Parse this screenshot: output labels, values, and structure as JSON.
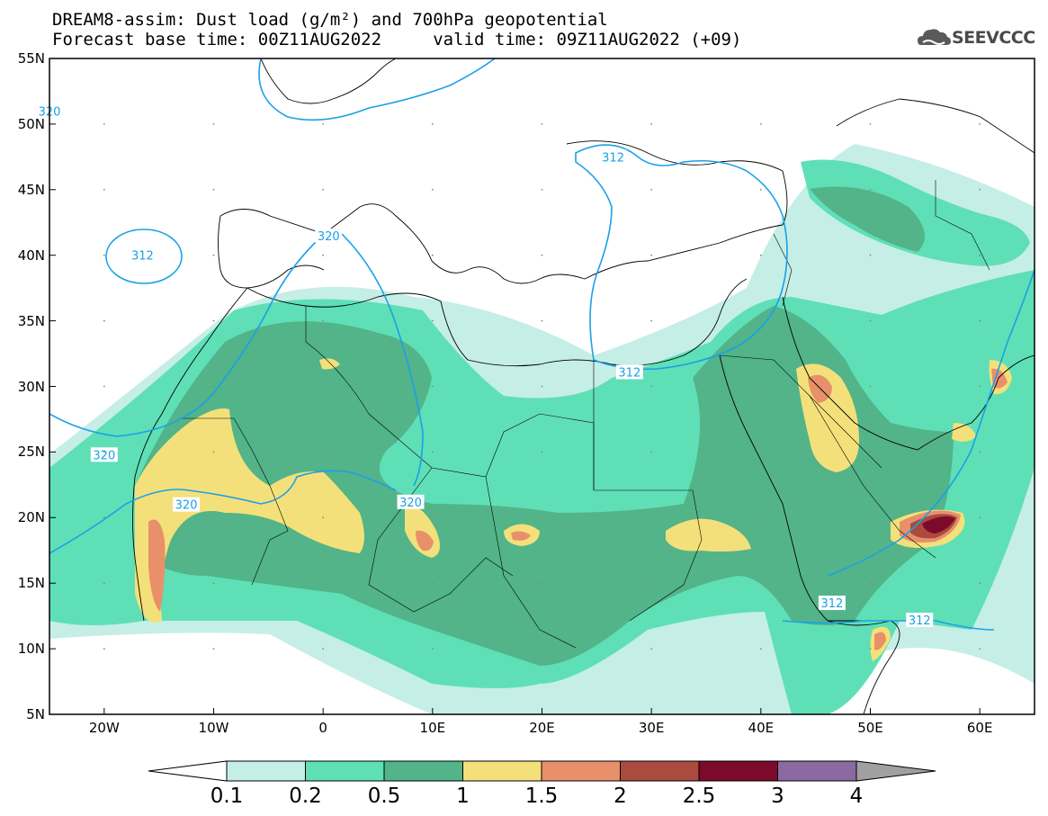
{
  "title_line1": "DREAM8-assim: Dust load (g/m²) and 700hPa geopotential",
  "title_line2": "Forecast base time: 00Z11AUG2022     valid time: 09Z11AUG2022 (+09)",
  "logo": {
    "text": "SEEVCCC",
    "icon": "cloud-icon"
  },
  "map": {
    "lon_range": [
      -25,
      65
    ],
    "lat_range": [
      5,
      55
    ],
    "lat_ticks": [
      {
        "value": 55,
        "label": "55N"
      },
      {
        "value": 50,
        "label": "50N"
      },
      {
        "value": 45,
        "label": "45N"
      },
      {
        "value": 40,
        "label": "40N"
      },
      {
        "value": 35,
        "label": "35N"
      },
      {
        "value": 30,
        "label": "30N"
      },
      {
        "value": 25,
        "label": "25N"
      },
      {
        "value": 20,
        "label": "20N"
      },
      {
        "value": 15,
        "label": "15N"
      },
      {
        "value": 10,
        "label": "10N"
      },
      {
        "value": 5,
        "label": "5N"
      }
    ],
    "lon_ticks": [
      {
        "value": -20,
        "label": "20W"
      },
      {
        "value": -10,
        "label": "10W"
      },
      {
        "value": 0,
        "label": "0"
      },
      {
        "value": 10,
        "label": "10E"
      },
      {
        "value": 20,
        "label": "20E"
      },
      {
        "value": 30,
        "label": "30E"
      },
      {
        "value": 40,
        "label": "40E"
      },
      {
        "value": 50,
        "label": "50E"
      },
      {
        "value": 60,
        "label": "60E"
      }
    ],
    "contour_labels": [
      {
        "text": "320",
        "lon": -25.0,
        "lat": 51.0
      },
      {
        "text": "312",
        "lon": 26.5,
        "lat": 47.5
      },
      {
        "text": "312",
        "lon": -16.5,
        "lat": 40.0
      },
      {
        "text": "320",
        "lon": 0.5,
        "lat": 41.5
      },
      {
        "text": "312",
        "lon": 28.0,
        "lat": 31.1
      },
      {
        "text": "320",
        "lon": -20.0,
        "lat": 24.8
      },
      {
        "text": "320",
        "lon": -12.5,
        "lat": 21.0
      },
      {
        "text": "320",
        "lon": 8.0,
        "lat": 21.2
      },
      {
        "text": "312",
        "lon": 46.5,
        "lat": 13.5
      },
      {
        "text": "312",
        "lon": 54.5,
        "lat": 12.2
      }
    ]
  },
  "colorbar": {
    "levels": [
      "0.1",
      "0.2",
      "0.5",
      "1",
      "1.5",
      "2",
      "2.5",
      "3",
      "4"
    ],
    "colors": [
      "#c5eee7",
      "#5fdfb6",
      "#52b488",
      "#f4e07a",
      "#e8906a",
      "#a94b3e",
      "#7c0a2a",
      "#8a6aa0"
    ],
    "under_color": "#ffffff",
    "over_color": "#a0a0a0"
  },
  "colors": {
    "contour": "#1aa0e8",
    "coast": "#000000"
  }
}
